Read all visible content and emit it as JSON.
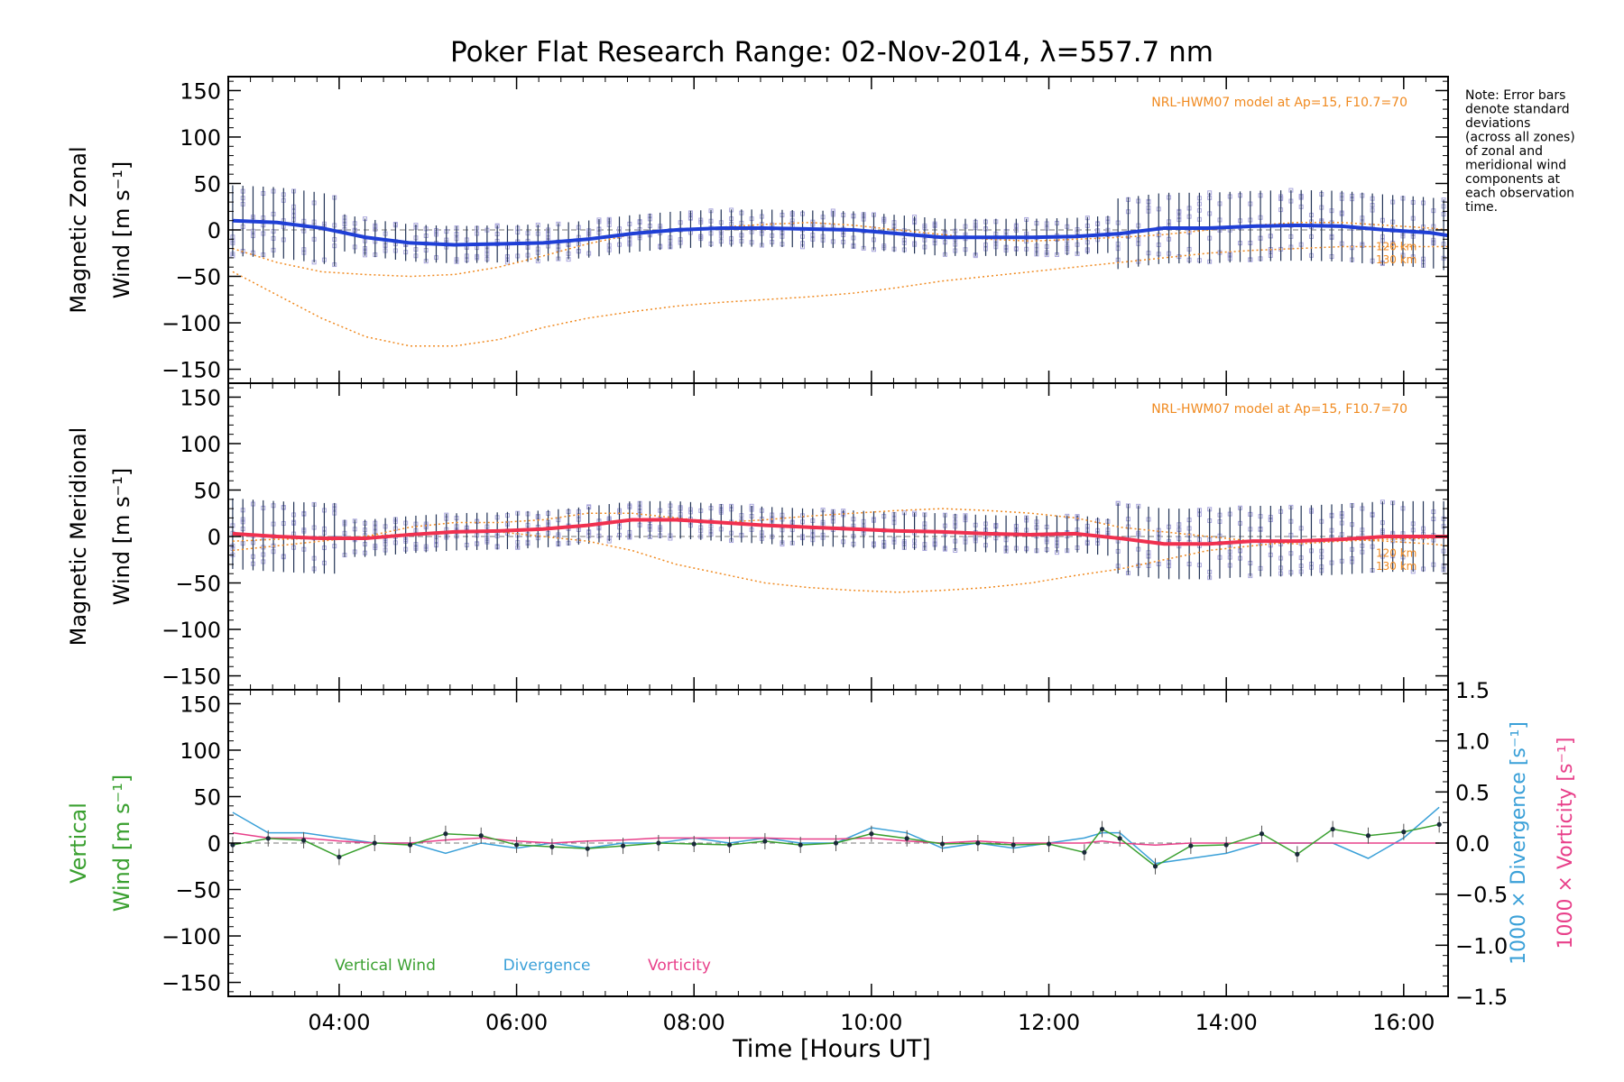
{
  "title": "Poker Flat Research Range: 02-Nov-2014, λ=557.7 nm",
  "note_lines": [
    "Note: Error bars",
    "denote standard",
    "deviations",
    "(across all zones)",
    "of zonal and",
    "meridional wind",
    "components at",
    "each observation",
    "time."
  ],
  "xlabel": "Time [Hours UT]",
  "x_ticks": [
    "04:00",
    "06:00",
    "08:00",
    "10:00",
    "12:00",
    "14:00",
    "16:00"
  ],
  "y_ticks": [
    "150",
    "100",
    "50",
    "0",
    "−50",
    "−100",
    "−150"
  ],
  "right_ticks": [
    "1.5",
    "1.0",
    "0.5",
    "0.0",
    "−0.5",
    "−1.0",
    "−1.5"
  ],
  "colors": {
    "zonal": "#1f3fd6",
    "meridional": "#f0304f",
    "vertical": "#3aa030",
    "divergence": "#3aa0d8",
    "vorticity": "#e8408a",
    "model": "#f08a20",
    "zone_points": "#a9a6dc",
    "error_bar": "#223355"
  },
  "chart_data": [
    {
      "type": "line",
      "panel": "zonal",
      "ylabel_lines": [
        "Magnetic Zonal",
        "Wind [m s⁻¹]"
      ],
      "model_note": "NRL-HWM07 model at Ap=15, F10.7=70",
      "model_levels": [
        "120 km",
        "130 km"
      ],
      "xlim": [
        2.75,
        16.5
      ],
      "ylim": [
        -165,
        165
      ],
      "x": [
        2.8,
        3.3,
        3.8,
        4.3,
        4.8,
        5.3,
        5.8,
        6.3,
        6.8,
        7.3,
        7.8,
        8.3,
        8.8,
        9.3,
        9.8,
        10.3,
        10.8,
        11.3,
        11.8,
        12.3,
        12.8,
        13.3,
        13.8,
        14.3,
        14.8,
        15.3,
        15.8,
        16.3,
        16.5
      ],
      "series": [
        {
          "name": "Magnetic Zonal Wind",
          "values": [
            10,
            8,
            2,
            -8,
            -14,
            -16,
            -15,
            -14,
            -10,
            -4,
            0,
            2,
            2,
            1,
            0,
            -4,
            -8,
            -8,
            -8,
            -7,
            -4,
            2,
            2,
            4,
            5,
            4,
            0,
            -3,
            -6
          ]
        },
        {
          "name": "120 km",
          "values": [
            -20,
            -35,
            -45,
            -48,
            -50,
            -48,
            -40,
            -28,
            -15,
            -5,
            0,
            3,
            6,
            8,
            5,
            0,
            -5,
            -10,
            -12,
            -10,
            -8,
            -5,
            0,
            5,
            8,
            8,
            5,
            2,
            0
          ]
        },
        {
          "name": "130 km",
          "values": [
            -45,
            -70,
            -95,
            -115,
            -125,
            -125,
            -118,
            -105,
            -95,
            -88,
            -82,
            -78,
            -75,
            -72,
            -68,
            -62,
            -55,
            -50,
            -45,
            -40,
            -35,
            -30,
            -25,
            -22,
            -20,
            -18,
            -18,
            -18,
            -18
          ]
        }
      ]
    },
    {
      "type": "line",
      "panel": "meridional",
      "ylabel_lines": [
        "Magnetic Meridional",
        "Wind [m s⁻¹]"
      ],
      "model_note": "NRL-HWM07 model at Ap=15, F10.7=70",
      "model_levels": [
        "120 km",
        "130 km"
      ],
      "xlim": [
        2.75,
        16.5
      ],
      "ylim": [
        -165,
        165
      ],
      "x": [
        2.8,
        3.3,
        3.8,
        4.3,
        4.8,
        5.3,
        5.8,
        6.3,
        6.8,
        7.3,
        7.8,
        8.3,
        8.8,
        9.3,
        9.8,
        10.3,
        10.8,
        11.3,
        11.8,
        12.3,
        12.8,
        13.3,
        13.8,
        14.3,
        14.8,
        15.3,
        15.8,
        16.3,
        16.5
      ],
      "series": [
        {
          "name": "Magnetic Meridional Wind",
          "values": [
            3,
            0,
            -2,
            -2,
            2,
            5,
            6,
            8,
            12,
            18,
            18,
            15,
            12,
            10,
            8,
            6,
            5,
            3,
            2,
            3,
            -2,
            -8,
            -8,
            -5,
            -5,
            -3,
            0,
            0,
            0
          ]
        },
        {
          "name": "120 km",
          "values": [
            -15,
            -10,
            -5,
            0,
            10,
            15,
            15,
            18,
            25,
            25,
            20,
            15,
            18,
            22,
            25,
            28,
            30,
            28,
            25,
            20,
            10,
            5,
            0,
            -5,
            -8,
            -5,
            -3,
            -2,
            0
          ]
        },
        {
          "name": "130 km",
          "values": [
            -5,
            -3,
            -2,
            0,
            3,
            5,
            5,
            0,
            -5,
            -15,
            -30,
            -40,
            -50,
            -55,
            -58,
            -60,
            -58,
            -55,
            -50,
            -42,
            -35,
            -25,
            -15,
            -10,
            -5,
            -3,
            -5,
            -8,
            -10
          ]
        }
      ]
    },
    {
      "type": "line",
      "panel": "vertical",
      "ylabel_lines": [
        "Vertical",
        "Wind [m s⁻¹]"
      ],
      "right_ylabels": [
        "1000 × Divergence [s⁻¹]",
        "1000 × Vorticity [s⁻¹]"
      ],
      "legend": [
        "Vertical Wind",
        "Divergence",
        "Vorticity"
      ],
      "xlim": [
        2.75,
        16.5
      ],
      "ylim": [
        -165,
        165
      ],
      "right_ylim": [
        -1.5,
        1.5
      ],
      "x": [
        2.8,
        3.2,
        3.6,
        4.0,
        4.4,
        4.8,
        5.2,
        5.6,
        6.0,
        6.4,
        6.8,
        7.2,
        7.6,
        8.0,
        8.4,
        8.8,
        9.2,
        9.6,
        10.0,
        10.4,
        10.8,
        11.2,
        11.6,
        12.0,
        12.4,
        12.6,
        12.8,
        13.2,
        13.6,
        14.0,
        14.4,
        14.8,
        15.2,
        15.6,
        16.0,
        16.4
      ],
      "series": [
        {
          "name": "Vertical Wind",
          "values": [
            -2,
            5,
            3,
            -15,
            0,
            -2,
            10,
            8,
            -2,
            -4,
            -6,
            -3,
            0,
            -1,
            -2,
            2,
            -2,
            0,
            10,
            5,
            -1,
            0,
            -2,
            -1,
            -10,
            15,
            5,
            -25,
            -3,
            -2,
            10,
            -12,
            15,
            8,
            12,
            20
          ]
        },
        {
          "name": "Divergence",
          "values": [
            0.3,
            0.1,
            0.1,
            0.05,
            0.0,
            0.0,
            -0.1,
            0.0,
            -0.05,
            0.0,
            -0.05,
            0.0,
            0.0,
            0.05,
            0.0,
            0.05,
            0.0,
            0.0,
            0.15,
            0.1,
            -0.05,
            0.0,
            -0.05,
            0.0,
            0.05,
            0.1,
            0.1,
            -0.2,
            -0.15,
            -0.1,
            0.0,
            0.0,
            0.0,
            -0.15,
            0.05,
            0.35
          ]
        },
        {
          "name": "Vorticity",
          "values": [
            0.1,
            0.05,
            0.05,
            0.02,
            0.0,
            0.0,
            0.03,
            0.05,
            0.02,
            0.0,
            0.02,
            0.03,
            0.05,
            0.05,
            0.05,
            0.05,
            0.04,
            0.04,
            0.05,
            0.02,
            0.0,
            0.02,
            0.0,
            0.0,
            0.0,
            0.02,
            0.0,
            -0.02,
            0.0,
            0.0,
            0.0,
            0.0,
            0.0,
            0.0,
            0.0,
            0.0
          ]
        }
      ]
    }
  ]
}
